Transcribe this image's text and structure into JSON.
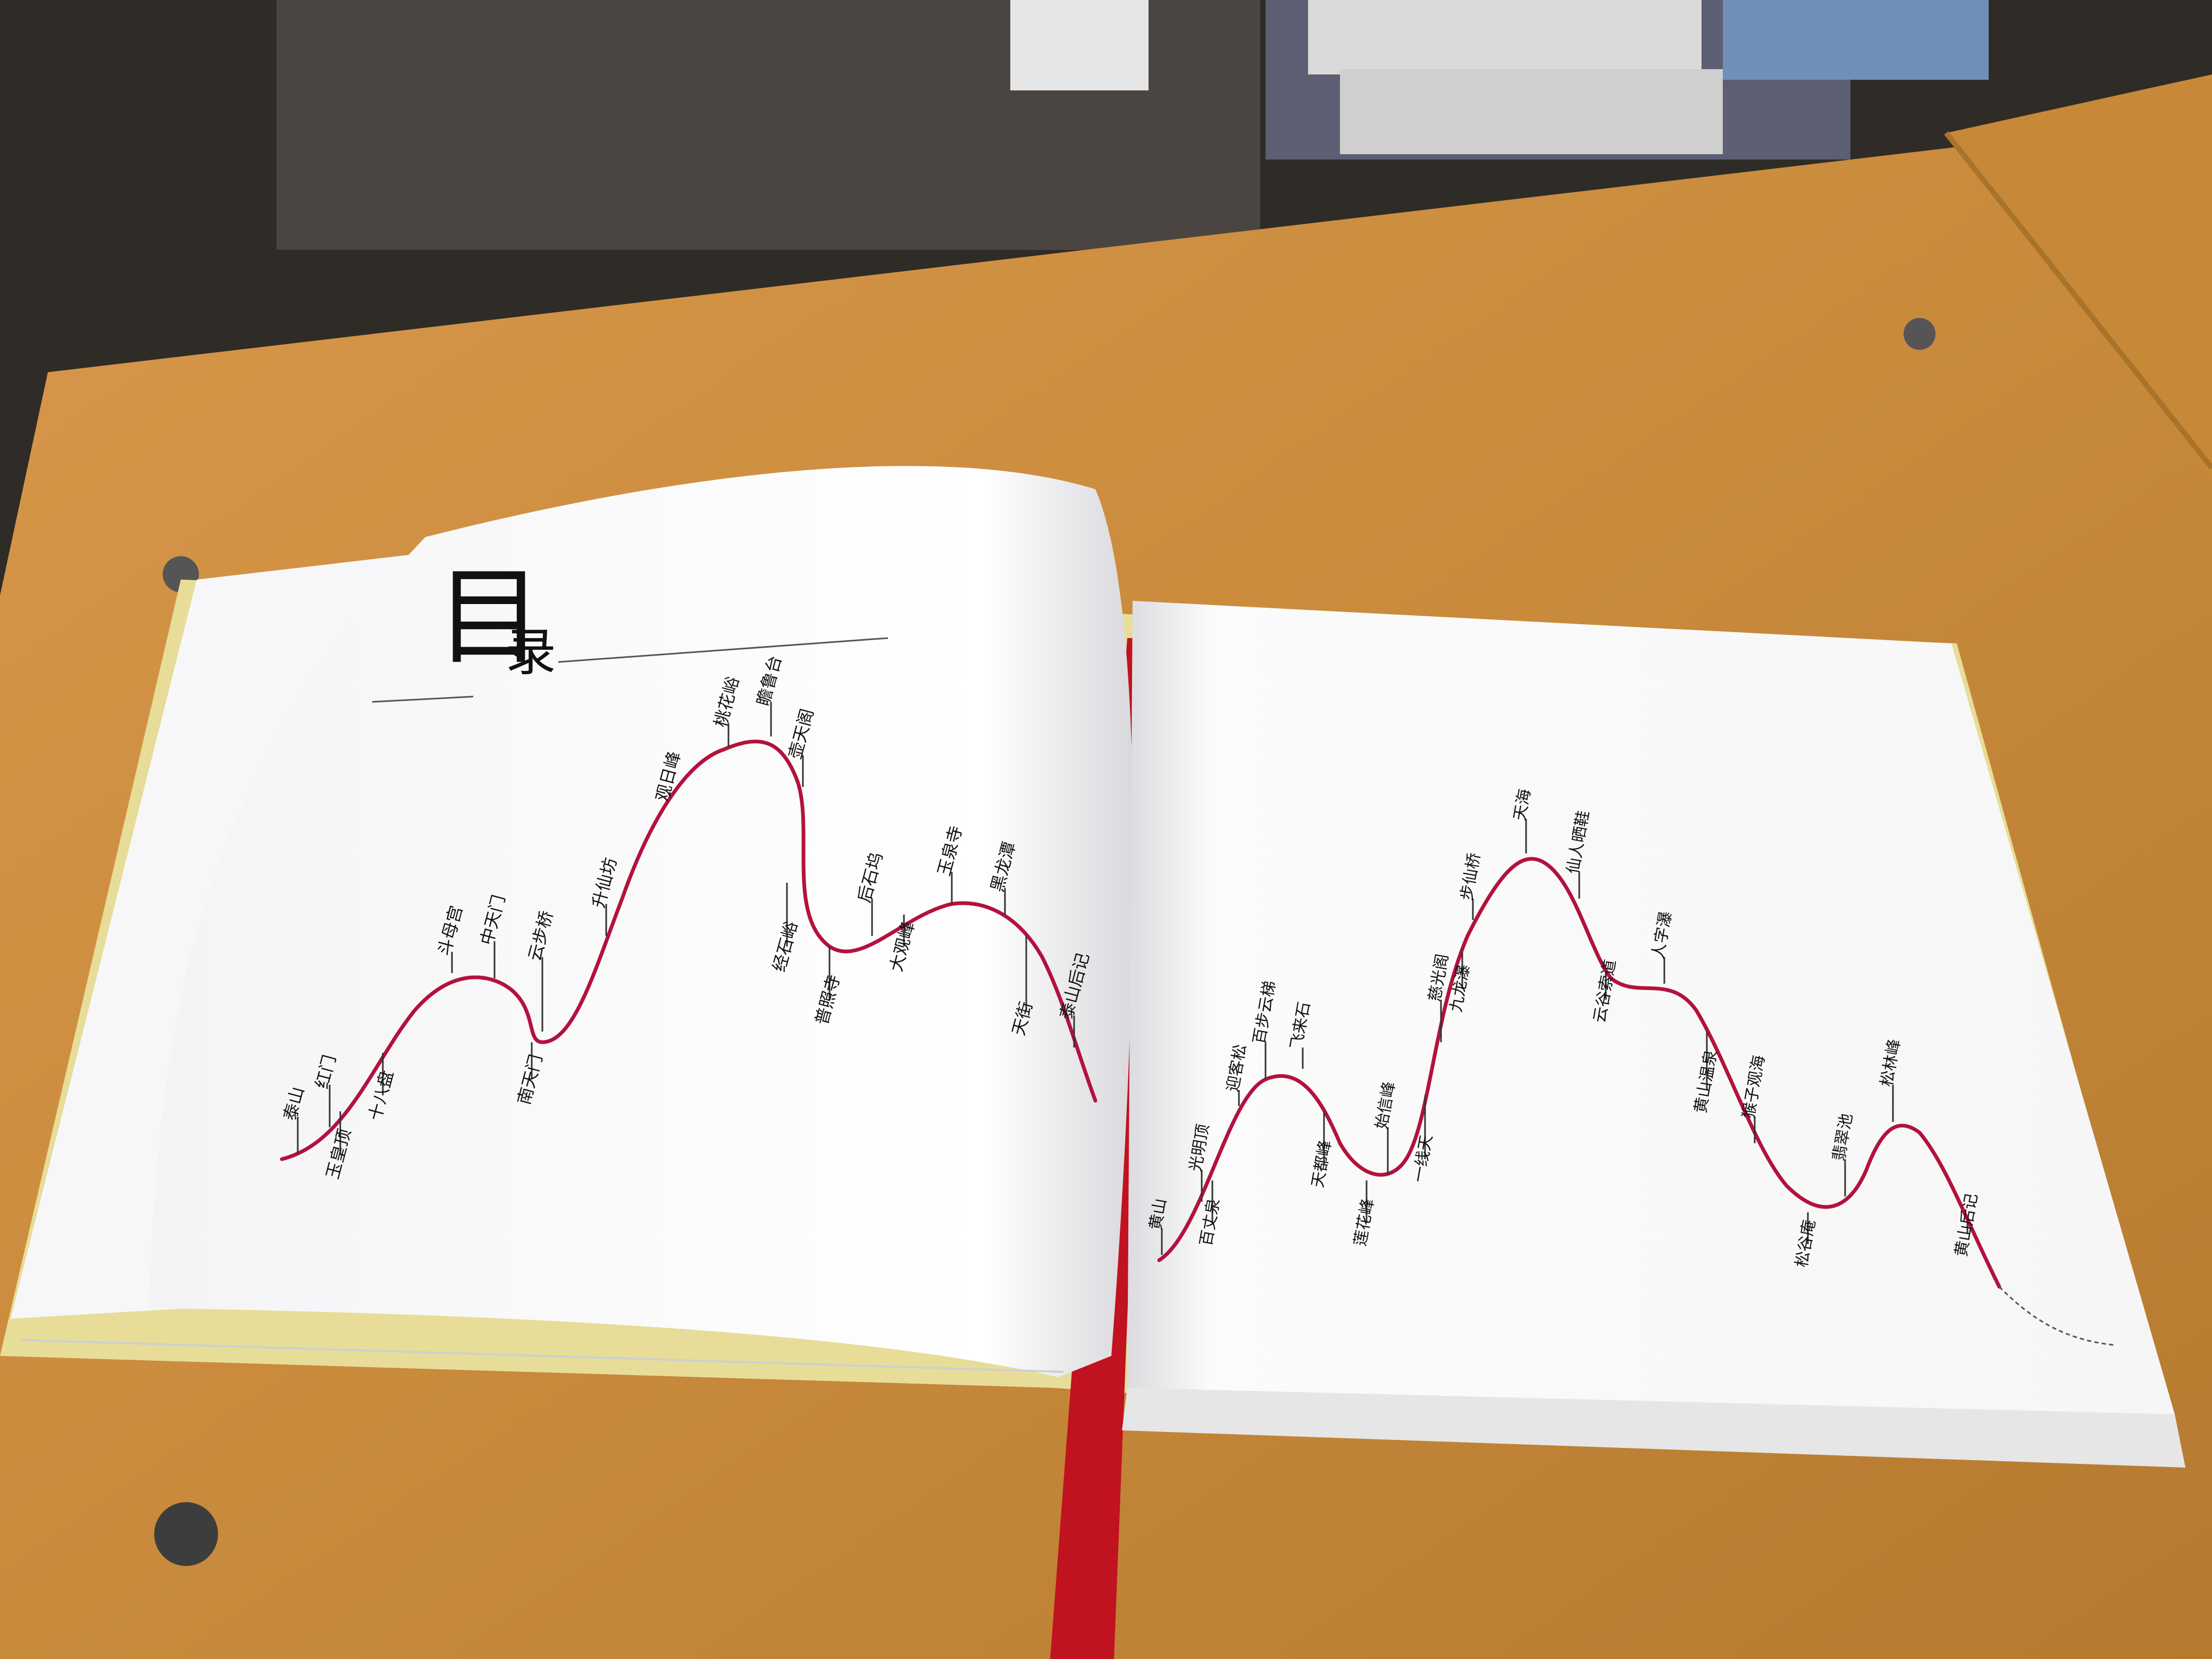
{
  "toc_title": {
    "big": "目",
    "small": "录"
  },
  "colors": {
    "route_curve": "#b3123d",
    "desk": "#c98a3c",
    "bookmark": "#c1121f"
  },
  "left_page": {
    "labels_up": [
      "泰山",
      "红门",
      "斗母宫",
      "中天门",
      "云步桥",
      "升仙坊",
      "观日峰",
      "桃花峪",
      "瞻鲁台",
      "壶天阁",
      "后石坞",
      "玉泉寺",
      "黑龙潭",
      "泰山后记"
    ],
    "labels_down": [
      "玉皇顶",
      "十八盘",
      "南天门",
      "经石峪",
      "普照寺",
      "大观峰",
      "天街"
    ]
  },
  "right_page": {
    "labels_up": [
      "黄山",
      "光明顶",
      "迎客松",
      "百步云梯",
      "飞来石",
      "始信峰",
      "慈光阁",
      "步仙桥",
      "天海",
      "仙人晒鞋",
      "人字瀑",
      "猴子观海",
      "翡翠池",
      "松林峰"
    ],
    "labels_down": [
      "百丈泉",
      "天都峰",
      "莲花峰",
      "一线天",
      "九龙瀑",
      "云谷索道",
      "黄山温泉",
      "松谷庵",
      "黄山后记"
    ]
  }
}
